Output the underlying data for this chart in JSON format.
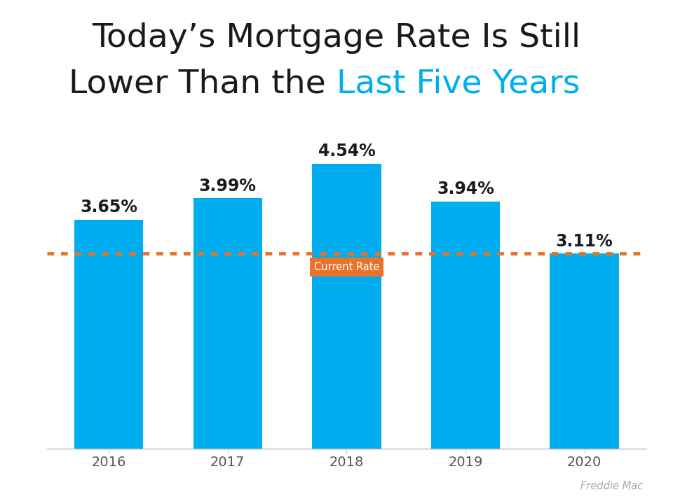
{
  "years": [
    "2016",
    "2017",
    "2018",
    "2019",
    "2020"
  ],
  "values": [
    3.65,
    3.99,
    4.54,
    3.94,
    3.11
  ],
  "labels": [
    "3.65%",
    "3.99%",
    "4.54%",
    "3.94%",
    "3.11%"
  ],
  "bar_color": "#00AEEF",
  "current_rate": 3.11,
  "dotted_line_y": 3.11,
  "dotted_line_color": "#E8732A",
  "current_rate_label": "Current Rate",
  "current_rate_box_color": "#E8732A",
  "current_rate_text_color": "#ffffff",
  "title_line1": "Today’s Mortgage Rate Is Still",
  "title_line2_black": "Lower Than the ",
  "title_line2_blue": "Last Five Years",
  "title_color_black": "#1a1a1a",
  "title_color_blue": "#00AEEF",
  "title_fontsize": 34,
  "label_fontsize": 17,
  "tick_fontsize": 14,
  "source_text": "Freddie Mac",
  "source_color": "#aaaaaa",
  "background_color": "#ffffff",
  "ylim": [
    0,
    5.3
  ]
}
